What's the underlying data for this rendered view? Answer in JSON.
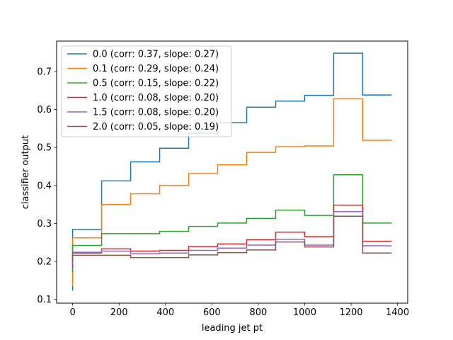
{
  "chart_data": {
    "type": "line",
    "drawstyle": "steps-post",
    "xlabel": "leading jet pt",
    "ylabel": "classifier output",
    "xlim": [
      -69,
      1444
    ],
    "ylim": [
      0.09,
      0.78
    ],
    "xticks": [
      0,
      200,
      400,
      600,
      800,
      1000,
      1200,
      1400
    ],
    "yticks": [
      0.1,
      0.2,
      0.3,
      0.4,
      0.5,
      0.6,
      0.7
    ],
    "ytick_labels": [
      "0.1",
      "0.2",
      "0.3",
      "0.4",
      "0.5",
      "0.6",
      "0.7"
    ],
    "grid": false,
    "legend_position": "upper-left",
    "x": [
      0,
      0,
      125,
      250,
      375,
      500,
      625,
      750,
      875,
      1000,
      1125,
      1250,
      1375
    ],
    "series": [
      {
        "name": "0.0 (corr: 0.37, slope: 0.27)",
        "color": "#1f77b4",
        "values": [
          0.123,
          0.284,
          0.412,
          0.462,
          0.498,
          0.537,
          0.565,
          0.606,
          0.622,
          0.637,
          0.748,
          0.638,
          0.638
        ]
      },
      {
        "name": "0.1 (corr: 0.29, slope: 0.24)",
        "color": "#ff7f0e",
        "values": [
          0.135,
          0.262,
          0.35,
          0.378,
          0.4,
          0.431,
          0.454,
          0.487,
          0.502,
          0.504,
          0.628,
          0.519,
          0.519
        ]
      },
      {
        "name": "0.5 (corr: 0.15, slope: 0.22)",
        "color": "#2ca02c",
        "values": [
          0.172,
          0.242,
          0.273,
          0.273,
          0.279,
          0.292,
          0.301,
          0.313,
          0.335,
          0.321,
          0.428,
          0.301,
          0.301
        ]
      },
      {
        "name": "1.0 (corr: 0.08, slope: 0.20)",
        "color": "#d62728",
        "values": [
          0.185,
          0.222,
          0.233,
          0.227,
          0.229,
          0.239,
          0.246,
          0.257,
          0.277,
          0.265,
          0.348,
          0.253,
          0.253
        ]
      },
      {
        "name": "1.5 (corr: 0.08, slope: 0.20)",
        "color": "#9467bd",
        "values": [
          0.192,
          0.224,
          0.227,
          0.22,
          0.222,
          0.229,
          0.235,
          0.243,
          0.258,
          0.243,
          0.331,
          0.241,
          0.241
        ]
      },
      {
        "name": "2.0 (corr: 0.05, slope: 0.19)",
        "color": "#8c564b",
        "values": [
          0.198,
          0.216,
          0.216,
          0.21,
          0.21,
          0.217,
          0.223,
          0.23,
          0.251,
          0.238,
          0.319,
          0.222,
          0.222
        ]
      }
    ]
  }
}
